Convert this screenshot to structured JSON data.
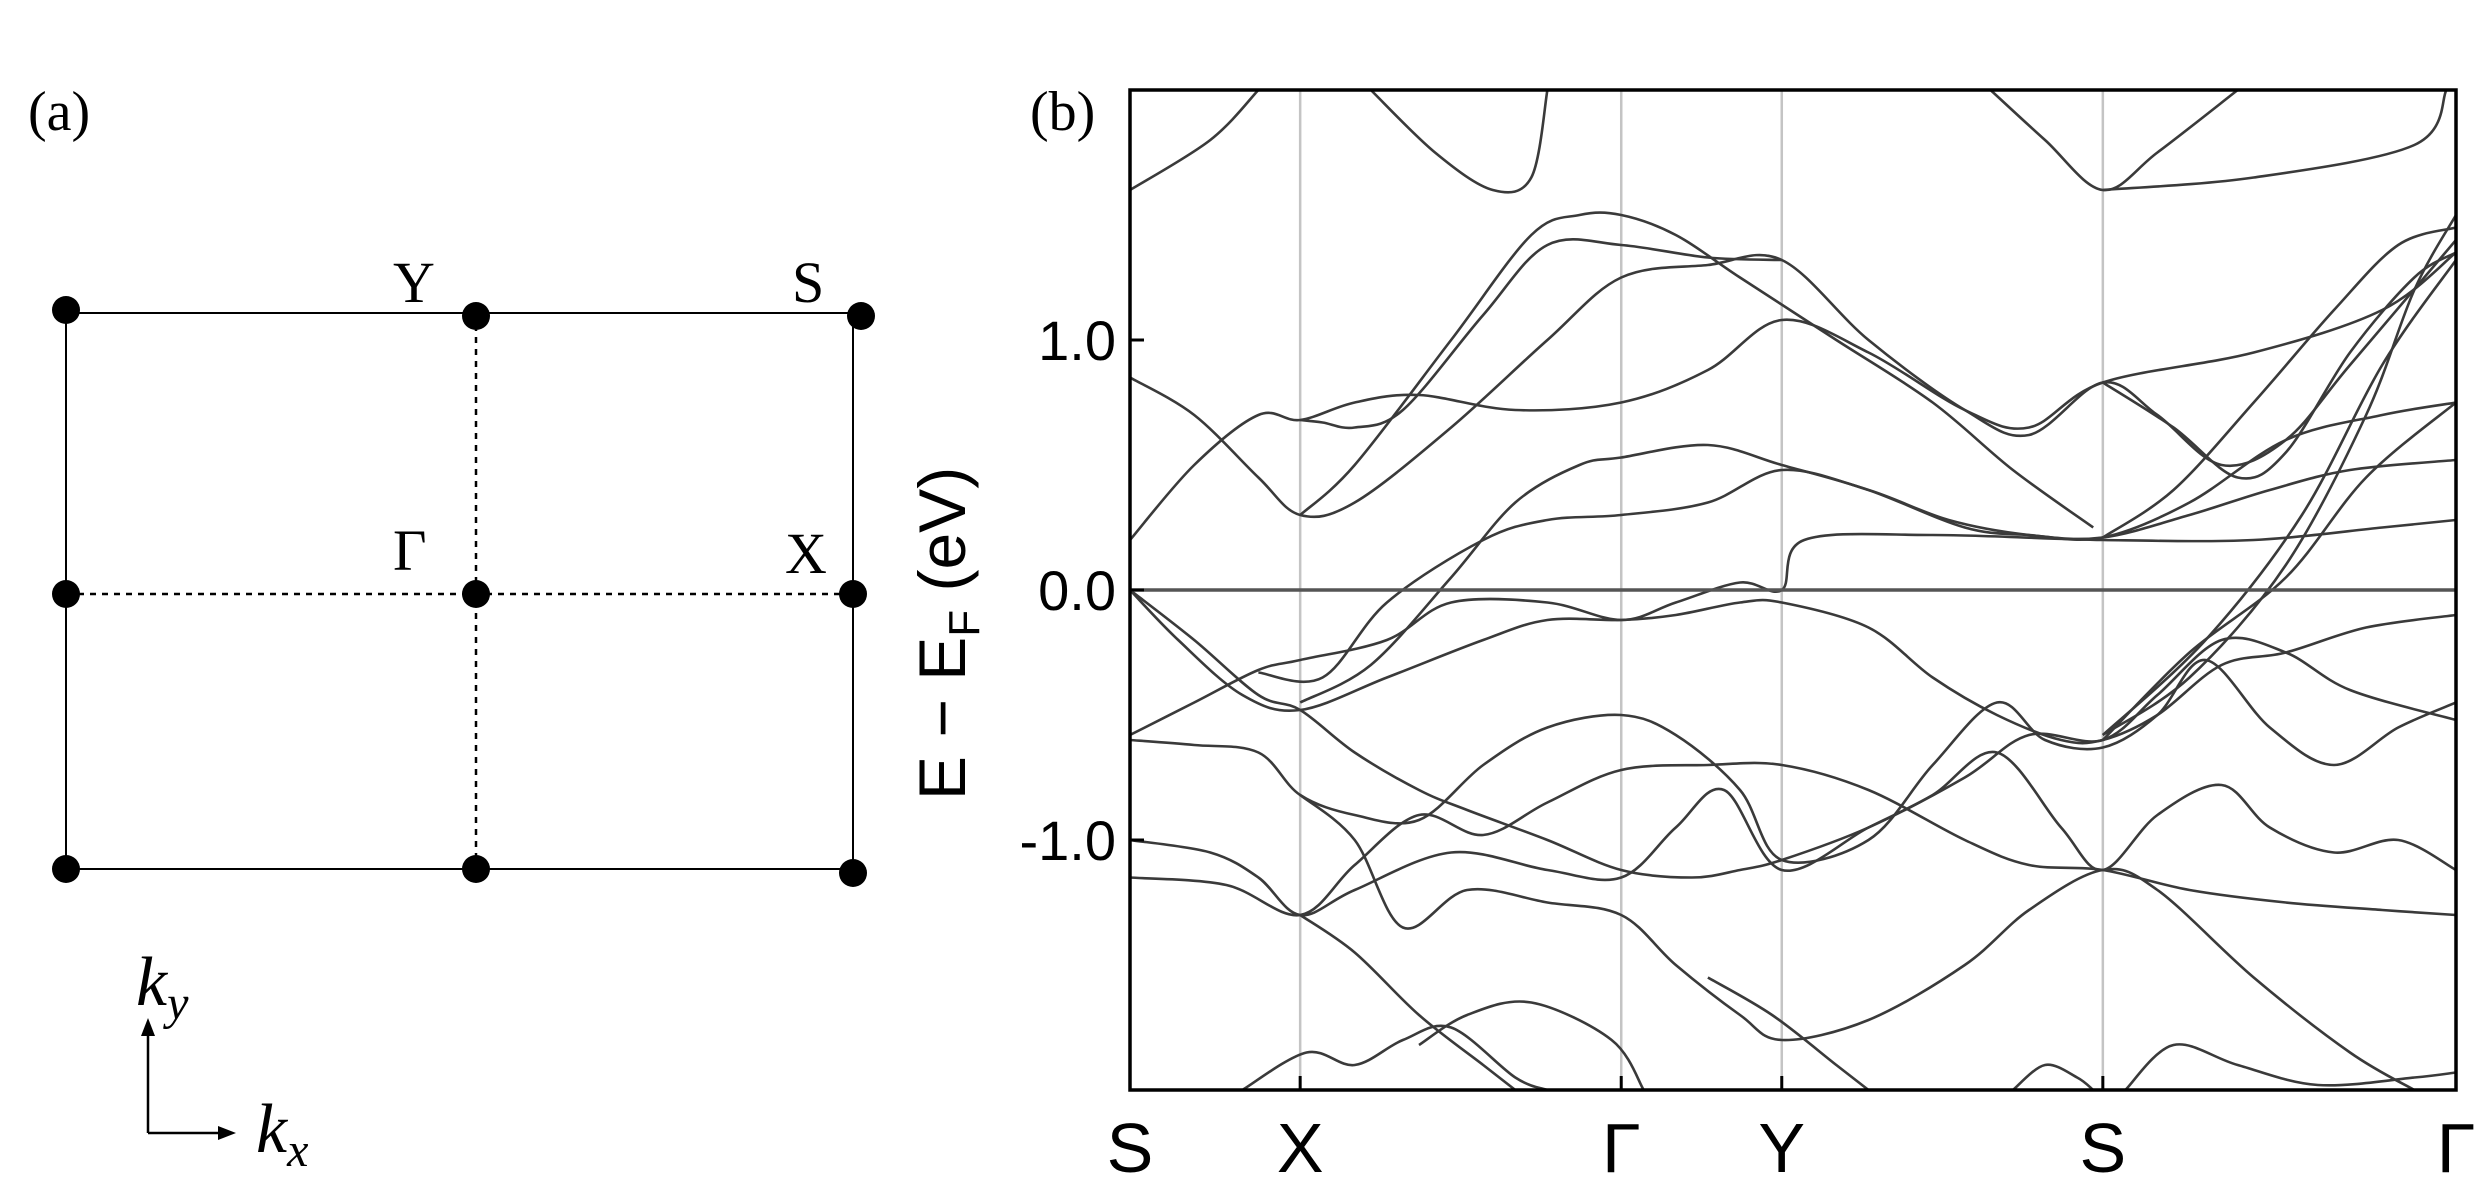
{
  "panels": {
    "a_label": "(a)",
    "b_label": "(b)"
  },
  "brillouin_zone": {
    "points": {
      "Y": "Y",
      "S": "S",
      "G": "Γ",
      "X": "X"
    },
    "axes": {
      "ky": "k",
      "ky_sub": "y",
      "kx": "k",
      "kx_sub": "x"
    }
  },
  "chart_data": {
    "type": "line",
    "title": "",
    "xlabel": "",
    "ylabel": {
      "main": "E − E",
      "sub": "F",
      "unit": " (eV)"
    },
    "ylim": [
      -2.0,
      2.0
    ],
    "yticks": [
      {
        "value": 1.0,
        "label": "1.0"
      },
      {
        "value": 0.0,
        "label": "0.0"
      },
      {
        "value": -1.0,
        "label": "-1.0"
      }
    ],
    "xlim": [
      0,
      4.13
    ],
    "kpath": [
      {
        "label": "S",
        "x": 0
      },
      {
        "label": "X",
        "x": 0.53
      },
      {
        "label": "Γ",
        "x": 1.53
      },
      {
        "label": "Y",
        "x": 2.03
      },
      {
        "label": "S",
        "x": 3.03
      },
      {
        "label": "Γ",
        "x": 4.13
      }
    ],
    "fermi_level": 0.0,
    "grid": false,
    "bands": [
      [
        [
          0,
          1.6
        ],
        [
          0.25,
          1.8
        ],
        [
          0.4,
          2.0
        ]
      ],
      [
        [
          0.75,
          2.0
        ],
        [
          0.95,
          1.75
        ],
        [
          1.13,
          1.6
        ],
        [
          1.25,
          1.65
        ],
        [
          1.3,
          2.0
        ]
      ],
      [
        [
          2.68,
          2.0
        ],
        [
          2.85,
          1.8
        ],
        [
          3.03,
          1.6
        ],
        [
          3.2,
          1.75
        ],
        [
          3.45,
          2.0
        ]
      ],
      [
        [
          3.03,
          1.6
        ],
        [
          3.5,
          1.65
        ],
        [
          4.0,
          1.78
        ],
        [
          4.1,
          2.0
        ]
      ],
      [
        [
          0,
          0.85
        ],
        [
          0.2,
          0.7
        ],
        [
          0.4,
          0.45
        ],
        [
          0.53,
          0.3
        ],
        [
          0.7,
          0.35
        ],
        [
          1.0,
          0.65
        ],
        [
          1.3,
          1.0
        ],
        [
          1.53,
          1.25
        ],
        [
          1.8,
          1.3
        ],
        [
          2.03,
          1.32
        ],
        [
          2.3,
          1.0
        ],
        [
          2.6,
          0.72
        ],
        [
          2.8,
          0.62
        ],
        [
          3.03,
          0.83
        ],
        [
          3.2,
          0.7
        ],
        [
          3.4,
          0.5
        ],
        [
          3.6,
          0.6
        ],
        [
          3.8,
          0.9
        ],
        [
          4.13,
          1.4
        ]
      ],
      [
        [
          0,
          0.2
        ],
        [
          0.2,
          0.5
        ],
        [
          0.4,
          0.7
        ],
        [
          0.53,
          0.68
        ],
        [
          0.7,
          0.75
        ],
        [
          0.9,
          0.78
        ],
        [
          1.2,
          0.72
        ],
        [
          1.53,
          0.75
        ],
        [
          1.8,
          0.88
        ],
        [
          2.03,
          1.08
        ],
        [
          2.3,
          0.95
        ],
        [
          2.6,
          0.72
        ],
        [
          2.8,
          0.65
        ],
        [
          3.03,
          0.83
        ],
        [
          3.5,
          0.95
        ],
        [
          3.9,
          1.12
        ],
        [
          4.13,
          1.35
        ]
      ],
      [
        [
          0.53,
          0.68
        ],
        [
          0.6,
          0.67
        ],
        [
          0.7,
          0.65
        ],
        [
          0.85,
          0.72
        ],
        [
          1.1,
          1.1
        ],
        [
          1.3,
          1.38
        ],
        [
          1.53,
          1.38
        ],
        [
          1.8,
          1.33
        ],
        [
          2.03,
          1.32
        ]
      ],
      [
        [
          0.53,
          0.3
        ],
        [
          0.7,
          0.5
        ],
        [
          1.0,
          1.0
        ],
        [
          1.25,
          1.42
        ],
        [
          1.4,
          1.5
        ],
        [
          1.53,
          1.5
        ],
        [
          1.7,
          1.42
        ],
        [
          1.9,
          1.25
        ],
        [
          2.2,
          1.0
        ],
        [
          2.5,
          0.75
        ],
        [
          2.75,
          0.48
        ],
        [
          3.0,
          0.25
        ]
      ],
      [
        [
          0.53,
          -0.45
        ],
        [
          0.75,
          -0.3
        ],
        [
          1.0,
          0.05
        ],
        [
          1.2,
          0.35
        ],
        [
          1.4,
          0.5
        ],
        [
          1.53,
          0.53
        ],
        [
          1.8,
          0.58
        ],
        [
          2.03,
          0.5
        ],
        [
          2.3,
          0.4
        ],
        [
          2.6,
          0.25
        ],
        [
          2.8,
          0.22
        ],
        [
          3.03,
          0.21
        ],
        [
          3.3,
          0.35
        ],
        [
          3.6,
          0.6
        ],
        [
          3.9,
          0.7
        ],
        [
          4.13,
          0.75
        ]
      ],
      [
        [
          0.4,
          -0.33
        ],
        [
          0.6,
          -0.35
        ],
        [
          0.8,
          -0.05
        ],
        [
          1.1,
          0.2
        ],
        [
          1.3,
          0.28
        ],
        [
          1.53,
          0.3
        ],
        [
          1.8,
          0.35
        ],
        [
          2.03,
          0.48
        ],
        [
          2.3,
          0.4
        ],
        [
          2.55,
          0.28
        ],
        [
          2.8,
          0.22
        ],
        [
          3.03,
          0.21
        ],
        [
          3.3,
          0.3
        ],
        [
          3.55,
          0.4
        ],
        [
          3.8,
          0.48
        ],
        [
          4.13,
          0.52
        ]
      ],
      [
        [
          0,
          -0.58
        ],
        [
          0.2,
          -0.45
        ],
        [
          0.4,
          -0.32
        ],
        [
          0.53,
          -0.28
        ],
        [
          0.8,
          -0.2
        ],
        [
          1.0,
          -0.05
        ],
        [
          1.3,
          -0.05
        ],
        [
          1.53,
          -0.12
        ],
        [
          1.7,
          -0.05
        ],
        [
          1.9,
          0.03
        ],
        [
          2.03,
          0.0
        ],
        [
          2.1,
          0.2
        ],
        [
          2.5,
          0.22
        ],
        [
          3.03,
          0.2
        ],
        [
          3.5,
          0.2
        ],
        [
          3.9,
          0.25
        ],
        [
          4.13,
          0.28
        ]
      ],
      [
        [
          0,
          -0.0
        ],
        [
          0.2,
          -0.2
        ],
        [
          0.4,
          -0.42
        ],
        [
          0.53,
          -0.48
        ],
        [
          0.7,
          -0.65
        ],
        [
          0.9,
          -0.8
        ],
        [
          1.05,
          -0.88
        ],
        [
          1.3,
          -1.0
        ],
        [
          1.53,
          -1.12
        ],
        [
          1.75,
          -1.15
        ],
        [
          1.9,
          -1.12
        ],
        [
          2.03,
          -1.08
        ],
        [
          2.3,
          -0.95
        ],
        [
          2.6,
          -0.75
        ],
        [
          2.8,
          -0.58
        ],
        [
          3.03,
          -0.6
        ],
        [
          3.2,
          -0.42
        ],
        [
          3.4,
          -0.2
        ],
        [
          3.6,
          -0.25
        ],
        [
          3.8,
          -0.4
        ],
        [
          4.13,
          -0.52
        ]
      ],
      [
        [
          0,
          -0.0
        ],
        [
          0.15,
          -0.2
        ],
        [
          0.35,
          -0.42
        ],
        [
          0.53,
          -0.48
        ],
        [
          0.8,
          -0.35
        ],
        [
          1.1,
          -0.2
        ],
        [
          1.3,
          -0.12
        ],
        [
          1.53,
          -0.12
        ],
        [
          1.7,
          -0.1
        ],
        [
          1.9,
          -0.05
        ],
        [
          2.03,
          -0.05
        ],
        [
          2.3,
          -0.15
        ],
        [
          2.5,
          -0.35
        ],
        [
          2.7,
          -0.5
        ],
        [
          2.9,
          -0.6
        ],
        [
          3.03,
          -0.6
        ],
        [
          3.2,
          -0.5
        ],
        [
          3.4,
          -0.3
        ],
        [
          3.6,
          -0.25
        ],
        [
          3.85,
          -0.15
        ],
        [
          4.13,
          -0.1
        ]
      ],
      [
        [
          0,
          -0.6
        ],
        [
          0.2,
          -0.62
        ],
        [
          0.4,
          -0.65
        ],
        [
          0.53,
          -0.82
        ],
        [
          0.7,
          -0.9
        ],
        [
          0.9,
          -0.92
        ],
        [
          1.1,
          -0.7
        ],
        [
          1.3,
          -0.55
        ],
        [
          1.53,
          -0.5
        ],
        [
          1.7,
          -0.58
        ],
        [
          1.9,
          -0.8
        ],
        [
          2.03,
          -1.08
        ],
        [
          2.3,
          -1.0
        ],
        [
          2.5,
          -0.7
        ],
        [
          2.7,
          -0.45
        ],
        [
          2.85,
          -0.6
        ],
        [
          3.03,
          -0.63
        ],
        [
          3.2,
          -0.5
        ],
        [
          3.35,
          -0.28
        ],
        [
          3.55,
          -0.55
        ],
        [
          3.75,
          -0.7
        ],
        [
          3.95,
          -0.55
        ],
        [
          4.13,
          -0.45
        ]
      ],
      [
        [
          0,
          -1.0
        ],
        [
          0.25,
          -1.05
        ],
        [
          0.4,
          -1.15
        ],
        [
          0.53,
          -1.3
        ],
        [
          0.7,
          -1.2
        ],
        [
          1.0,
          -1.05
        ],
        [
          1.3,
          -1.12
        ],
        [
          1.53,
          -1.15
        ],
        [
          1.7,
          -0.95
        ],
        [
          1.85,
          -0.8
        ],
        [
          2.03,
          -1.12
        ],
        [
          2.3,
          -0.95
        ],
        [
          2.5,
          -0.82
        ],
        [
          2.7,
          -0.65
        ],
        [
          2.9,
          -0.95
        ],
        [
          3.03,
          -1.12
        ],
        [
          3.2,
          -0.9
        ],
        [
          3.4,
          -0.78
        ],
        [
          3.55,
          -0.95
        ],
        [
          3.75,
          -1.05
        ],
        [
          3.95,
          -1.0
        ],
        [
          4.13,
          -1.12
        ]
      ],
      [
        [
          0,
          -1.15
        ],
        [
          0.3,
          -1.18
        ],
        [
          0.53,
          -1.3
        ],
        [
          0.7,
          -1.1
        ],
        [
          0.9,
          -0.9
        ],
        [
          1.1,
          -0.98
        ],
        [
          1.3,
          -0.85
        ],
        [
          1.53,
          -0.72
        ],
        [
          1.8,
          -0.7
        ],
        [
          2.03,
          -0.7
        ],
        [
          2.3,
          -0.8
        ],
        [
          2.6,
          -1.0
        ],
        [
          2.8,
          -1.1
        ],
        [
          3.03,
          -1.12
        ],
        [
          3.3,
          -1.2
        ],
        [
          3.6,
          -1.25
        ],
        [
          3.9,
          -1.28
        ],
        [
          4.13,
          -1.3
        ]
      ],
      [
        [
          0.53,
          -0.82
        ],
        [
          0.7,
          -1.0
        ],
        [
          0.85,
          -1.35
        ],
        [
          1.05,
          -1.2
        ],
        [
          1.3,
          -1.25
        ],
        [
          1.53,
          -1.3
        ],
        [
          1.7,
          -1.5
        ],
        [
          1.9,
          -1.7
        ],
        [
          2.03,
          -1.8
        ],
        [
          2.3,
          -1.72
        ],
        [
          2.6,
          -1.5
        ],
        [
          2.8,
          -1.28
        ],
        [
          3.03,
          -1.12
        ],
        [
          3.2,
          -1.2
        ],
        [
          3.5,
          -1.55
        ],
        [
          3.8,
          -1.85
        ],
        [
          4.0,
          -2.0
        ]
      ],
      [
        [
          0.53,
          -1.3
        ],
        [
          0.7,
          -1.45
        ],
        [
          0.9,
          -1.7
        ],
        [
          1.1,
          -1.9
        ],
        [
          1.2,
          -2.0
        ]
      ],
      [
        [
          0.35,
          -2.0
        ],
        [
          0.55,
          -1.85
        ],
        [
          0.7,
          -1.9
        ],
        [
          0.85,
          -1.8
        ],
        [
          1.0,
          -1.75
        ],
        [
          1.2,
          -1.95
        ],
        [
          1.3,
          -2.0
        ]
      ],
      [
        [
          0.9,
          -1.82
        ],
        [
          1.05,
          -1.7
        ],
        [
          1.25,
          -1.65
        ],
        [
          1.5,
          -1.8
        ],
        [
          1.6,
          -2.0
        ]
      ],
      [
        [
          1.8,
          -1.55
        ],
        [
          2.0,
          -1.7
        ],
        [
          2.2,
          -1.9
        ],
        [
          2.3,
          -2.0
        ]
      ],
      [
        [
          2.75,
          -2.0
        ],
        [
          2.85,
          -1.9
        ],
        [
          2.95,
          -1.95
        ],
        [
          3.0,
          -2.0
        ]
      ],
      [
        [
          3.1,
          -2.0
        ],
        [
          3.25,
          -1.82
        ],
        [
          3.45,
          -1.9
        ],
        [
          3.7,
          -1.98
        ],
        [
          4.0,
          -1.95
        ],
        [
          4.13,
          -1.93
        ]
      ],
      [
        [
          3.03,
          0.0
        ],
        [
          3.5,
          -0.0
        ],
        [
          4.13,
          -0.0
        ]
      ],
      [
        [
          3.03,
          -0.58
        ],
        [
          3.3,
          -0.35
        ],
        [
          3.6,
          0.1
        ],
        [
          3.85,
          0.7
        ],
        [
          4.0,
          1.2
        ],
        [
          4.13,
          1.5
        ]
      ],
      [
        [
          3.03,
          -0.58
        ],
        [
          3.35,
          -0.2
        ],
        [
          3.65,
          0.3
        ],
        [
          3.9,
          0.9
        ],
        [
          4.13,
          1.32
        ]
      ],
      [
        [
          3.03,
          -0.6
        ],
        [
          3.3,
          -0.25
        ],
        [
          3.6,
          0.05
        ],
        [
          3.85,
          0.45
        ],
        [
          4.13,
          0.75
        ]
      ],
      [
        [
          3.03,
          0.21
        ],
        [
          3.25,
          0.4
        ],
        [
          3.5,
          0.75
        ],
        [
          3.75,
          1.12
        ],
        [
          3.95,
          1.38
        ],
        [
          4.13,
          1.45
        ]
      ],
      [
        [
          3.03,
          0.83
        ],
        [
          3.25,
          0.65
        ],
        [
          3.45,
          0.45
        ],
        [
          3.6,
          0.55
        ],
        [
          3.8,
          0.95
        ],
        [
          4.0,
          1.25
        ],
        [
          4.13,
          1.35
        ]
      ]
    ]
  }
}
